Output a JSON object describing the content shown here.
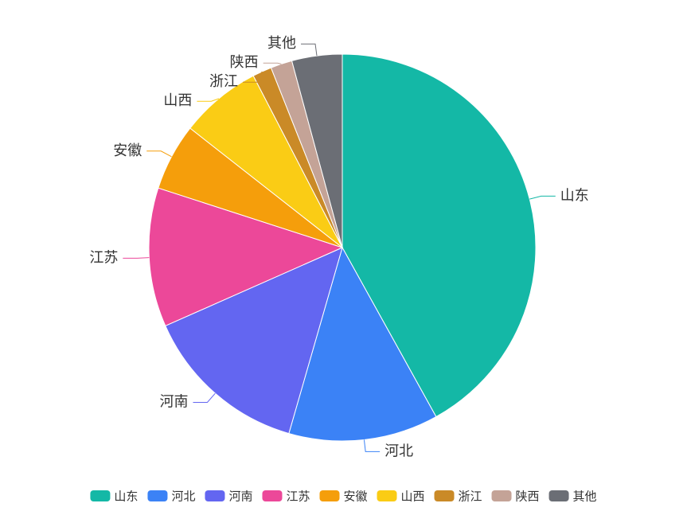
{
  "chart_data": {
    "type": "pie",
    "categories": [
      "山东",
      "河北",
      "河南",
      "江苏",
      "安徽",
      "山西",
      "浙江",
      "陕西",
      "其他"
    ],
    "values": [
      41.9,
      12.5,
      13.9,
      11.6,
      5.6,
      6.8,
      1.6,
      1.8,
      4.2
    ],
    "colors": [
      "#14b8a6",
      "#3b82f6",
      "#6366f1",
      "#ec4899",
      "#f59e0b",
      "#facc15",
      "#ca8a27",
      "#c4a397",
      "#6b6e75"
    ],
    "legend": "bottom"
  }
}
